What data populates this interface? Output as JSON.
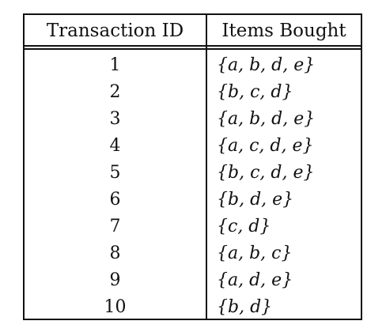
{
  "table": {
    "headers": {
      "transaction_id": "Transaction ID",
      "items_bought": "Items Bought"
    },
    "rows": [
      {
        "id": "1",
        "items": "{a, b, d, e}"
      },
      {
        "id": "2",
        "items": "{b, c, d}"
      },
      {
        "id": "3",
        "items": "{a, b, d, e}"
      },
      {
        "id": "4",
        "items": "{a, c, d, e}"
      },
      {
        "id": "5",
        "items": "{b, c, d, e}"
      },
      {
        "id": "6",
        "items": "{b, d, e}"
      },
      {
        "id": "7",
        "items": "{c, d}"
      },
      {
        "id": "8",
        "items": "{a, b, c}"
      },
      {
        "id": "9",
        "items": "{a, d, e}"
      },
      {
        "id": "10",
        "items": "{b, d}"
      }
    ]
  }
}
